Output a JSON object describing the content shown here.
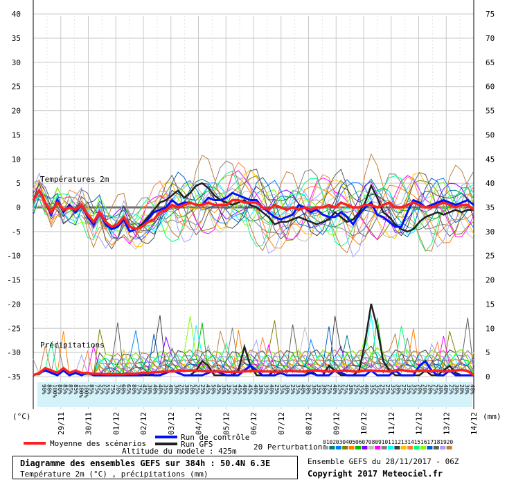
{
  "chart_data": {
    "type": "line",
    "title": "Diagramme des ensembles GEFS sur 384h : 50.4N 6.3E",
    "subtitle": "Température 2m (°C) , précipitations (mm)",
    "left_axis": {
      "unit": "(°C)",
      "ticks": [
        40,
        35,
        30,
        25,
        20,
        15,
        10,
        5,
        0,
        -5,
        -10,
        -15,
        -20,
        -25,
        -30,
        -35
      ],
      "range": [
        -35,
        40
      ]
    },
    "right_axis": {
      "unit": "(mm)",
      "ticks": [
        75,
        70,
        65,
        60,
        55,
        50,
        45,
        40,
        35,
        30,
        25,
        20,
        15,
        10,
        5,
        0
      ],
      "range": [
        0,
        75
      ]
    },
    "x_dates": [
      "29/11",
      "30/11",
      "01/12",
      "02/12",
      "03/12",
      "04/12",
      "05/12",
      "06/12",
      "07/12",
      "08/12",
      "09/12",
      "10/12",
      "11/12",
      "12/12",
      "13/12",
      "14/12"
    ],
    "sections": {
      "temperature": "Températures 2m",
      "precip": "Précipitations"
    },
    "altitude_label": "Altitude du modele : 425m",
    "grid": true,
    "humidity_row": [
      "90%",
      "80%",
      "100%",
      "80%",
      "85%",
      "85%",
      "85%",
      "100%",
      "100%",
      "85%",
      "75%",
      "55%",
      "55%",
      "75%",
      "70%",
      "60%",
      "65%",
      "80%",
      "75%",
      "45%",
      "30%",
      "40%",
      "40%",
      "35%",
      "40%",
      "30%",
      "25%",
      "30%",
      "20%",
      "25%",
      "25%",
      "45%",
      "50%",
      "45%",
      "30%",
      "35%",
      "35%",
      "45%",
      "40%",
      "45%",
      "40%",
      "30%",
      "35%",
      "40%",
      "25%",
      "35%",
      "30%",
      "25%",
      "35%",
      "40%",
      "30%",
      "30%",
      "35%",
      "30%",
      "25%",
      "40%",
      "25%",
      "25%",
      "30%",
      "25%",
      "35%",
      "40%",
      "35%",
      "35%",
      "25%",
      "25%",
      "35%",
      "30%",
      "25%",
      "35%",
      "35%",
      "20%",
      "20%",
      "20%",
      "25%",
      "30%",
      "40%",
      "25%",
      "30%",
      "20%",
      "30%",
      "40%"
    ],
    "series": [
      {
        "name": "Moyenne des scénarios",
        "color": "#ff2020",
        "temp": [
          1.5,
          3.5,
          1.0,
          -1.0,
          1.0,
          -0.5,
          0.0,
          -0.5,
          0.5,
          -1.5,
          -3.0,
          -1.0,
          -3.0,
          -4.0,
          -3.5,
          -2.0,
          -4.0,
          -4.5,
          -4.0,
          -3.0,
          -2.5,
          -1.0,
          -0.5,
          0.5,
          0.0,
          0.5,
          1.0,
          0.5,
          0.5,
          1.0,
          0.5,
          0.5,
          0.5,
          1.5,
          1.5,
          1.0,
          1.0,
          1.0,
          0.0,
          -0.5,
          0.5,
          0.0,
          -0.5,
          0.0,
          -0.5,
          0.0,
          -0.5,
          0.0,
          0.0,
          0.5,
          0.0,
          1.0,
          0.5,
          0.0,
          0.0,
          0.5,
          0.5,
          0.0,
          0.5,
          1.0,
          0.0,
          0.0,
          0.5,
          1.0,
          0.5,
          0.0,
          0.0,
          0.5,
          1.0,
          0.5,
          0.0,
          0.5,
          0.5,
          -0.5
        ],
        "precip": [
          0.0,
          0.5,
          1.5,
          1.0,
          0.5,
          1.5,
          0.5,
          1.0,
          0.5,
          0.5,
          0.3,
          0.3,
          0.2,
          0.2,
          0.2,
          0.2,
          0.3,
          0.3,
          0.5,
          0.5,
          0.6,
          0.7,
          0.8,
          0.8,
          0.9,
          0.9,
          1.0,
          1.0,
          0.9,
          0.8,
          0.8,
          0.8,
          0.7,
          0.7,
          0.7,
          0.8,
          0.9,
          0.9,
          0.8,
          0.8,
          0.7,
          0.8,
          0.9,
          0.9,
          0.8,
          0.8,
          1.0,
          1.0,
          0.9,
          0.8,
          0.9,
          0.9,
          1.0,
          0.8,
          0.8,
          1.0,
          1.0,
          0.9,
          0.9,
          0.8,
          1.0,
          1.1,
          0.9,
          0.8,
          1.0,
          0.9,
          0.9,
          1.0,
          0.8,
          0.9,
          1.0,
          1.1,
          0.9,
          0.0
        ]
      },
      {
        "name": "Run de contrôle",
        "color": "#0010ff",
        "temp": [
          1.5,
          3.5,
          1.0,
          -1.5,
          1.5,
          -1.0,
          0.5,
          -1.0,
          0.5,
          -2.0,
          -3.5,
          -1.0,
          -3.5,
          -4.5,
          -4.0,
          -2.5,
          -5.0,
          -4.5,
          -4.0,
          -2.5,
          -1.0,
          -0.5,
          0.0,
          1.5,
          0.5,
          1.0,
          1.0,
          0.5,
          0.5,
          2.0,
          1.5,
          1.5,
          2.0,
          3.0,
          2.5,
          2.0,
          1.5,
          1.5,
          0.0,
          -1.0,
          -2.0,
          -2.5,
          -2.0,
          -1.5,
          0.5,
          0.0,
          -1.0,
          -0.5,
          -1.5,
          -2.0,
          -2.0,
          -1.0,
          -2.0,
          -3.5,
          -1.5,
          0.0,
          1.0,
          -1.5,
          -2.0,
          -3.0,
          -4.0,
          -4.0,
          -1.0,
          1.5,
          1.0,
          0.0,
          0.5,
          1.0,
          1.5,
          1.0,
          0.5,
          1.0,
          1.5,
          0.5
        ],
        "precip": [
          0,
          0.5,
          1,
          0.5,
          0,
          1,
          0,
          0.5,
          0,
          0.5,
          0,
          0,
          0,
          0,
          0,
          0,
          0,
          0,
          0,
          0.5,
          0,
          0,
          0.5,
          1,
          0.5,
          0,
          0,
          0,
          0,
          0.5,
          1,
          0.5,
          0,
          0,
          0,
          1,
          2,
          1,
          0,
          0,
          0,
          0.5,
          0,
          0,
          0,
          0,
          0.5,
          0,
          0,
          0,
          1,
          0.5,
          0,
          0,
          0,
          0,
          1,
          0,
          0,
          0,
          1,
          0,
          0,
          0,
          2,
          3,
          1,
          0,
          0,
          1,
          0,
          0,
          0,
          0
        ]
      },
      {
        "name": "Run GFS",
        "color": "#202020",
        "temp": [
          1.5,
          3.5,
          1.0,
          -1.0,
          1.0,
          -0.5,
          0.0,
          -0.5,
          0.5,
          -1.5,
          -3.0,
          -1.0,
          -3.0,
          -4.0,
          -3.5,
          -2.0,
          -4.0,
          -4.5,
          -3.5,
          -2.0,
          -0.5,
          1.0,
          1.5,
          2.5,
          3.5,
          2.0,
          3.0,
          4.5,
          5.0,
          4.0,
          2.5,
          1.5,
          1.0,
          0.5,
          1.0,
          1.5,
          0.5,
          0.0,
          -1.0,
          -2.0,
          -3.5,
          -3.0,
          -3.0,
          -2.5,
          -2.0,
          -2.5,
          -3.0,
          -3.5,
          -3.0,
          -2.5,
          -1.0,
          -2.0,
          -3.0,
          -2.5,
          -1.0,
          1.0,
          4.5,
          2.0,
          -1.0,
          -2.0,
          -3.5,
          -4.5,
          -5.0,
          -4.5,
          -3.0,
          -2.0,
          -1.5,
          -1.0,
          -1.5,
          -1.0,
          -0.5,
          -1.0,
          -0.5,
          -0.5
        ],
        "precip": [
          0,
          0.5,
          1,
          0.5,
          0,
          1,
          0,
          0.5,
          0,
          0.5,
          0,
          0,
          0,
          0,
          0,
          0,
          0,
          0,
          0,
          0,
          0,
          0,
          0.5,
          1,
          0.5,
          0,
          0,
          1,
          3,
          2,
          0,
          0,
          0,
          0,
          1,
          6,
          2,
          0,
          0,
          0,
          1,
          0.5,
          0,
          0,
          0,
          0,
          1,
          0,
          0,
          2,
          1,
          0,
          0,
          0,
          1,
          7,
          15,
          10,
          3,
          1,
          0,
          0,
          0,
          0,
          0,
          1,
          0,
          0,
          1,
          2,
          0.5,
          0,
          0,
          0
        ]
      }
    ],
    "legend": {
      "mean": "Moyenne des scénarios",
      "control": "Run de contrôle",
      "gfs": "Run GFS",
      "perturbations": "20 Perturbations",
      "perturbation_ids": [
        "01",
        "02",
        "03",
        "04",
        "05",
        "06",
        "07",
        "08",
        "09",
        "10",
        "11",
        "12",
        "13",
        "14",
        "15",
        "16",
        "17",
        "18",
        "19",
        "20"
      ],
      "perturbation_colors": [
        "#a0a0a0",
        "#008080",
        "#0080ff",
        "#808000",
        "#ff8000",
        "#00c000",
        "#8000ff",
        "#c0c0c0",
        "#ff00ff",
        "#808080",
        "#00ffff",
        "#404040",
        "#ffc000",
        "#ff8040",
        "#00ff80",
        "#80ff00",
        "#0060c0",
        "#606060",
        "#a0a0ff",
        "#c08040"
      ]
    }
  },
  "footer": {
    "title": "Diagramme des ensembles GEFS sur 384h : 50.4N 6.3E",
    "subtitle": "Température 2m (°C) , précipitations (mm)",
    "run": "Ensemble GEFS du 28/11/2017 - 06Z",
    "copyright": "Copyright 2017 Meteociel.fr"
  }
}
